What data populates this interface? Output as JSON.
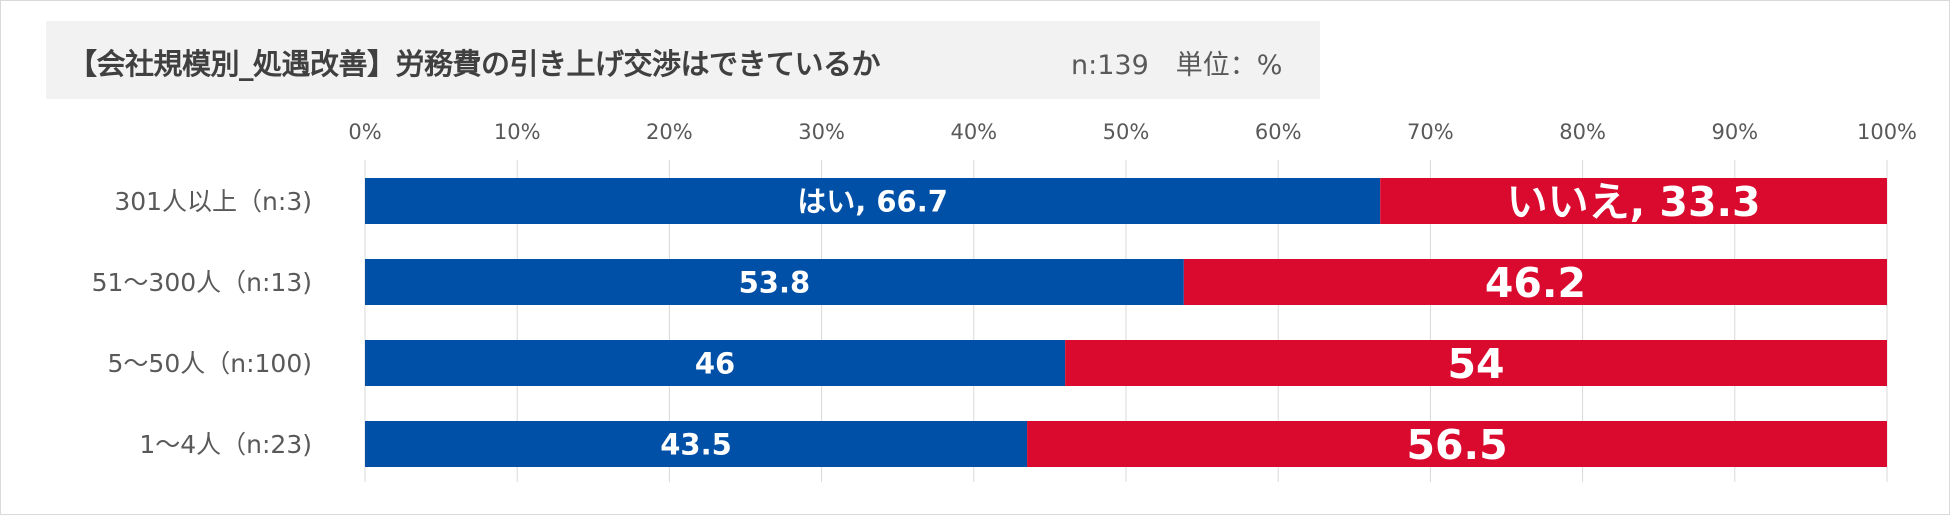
{
  "title": "【会社規模別_処遇改善】労務費の引き上げ交渉はできているか",
  "subtitle": "n:139　単位：%",
  "colors": {
    "yes": "#0050a8",
    "no": "#d90a2e",
    "grid": "#d9d9d9",
    "title_bg": "#f2f2f2"
  },
  "chart_data": {
    "type": "bar",
    "orientation": "horizontal",
    "stacked": true,
    "xlim": [
      0,
      100
    ],
    "x_ticks": [
      "0%",
      "10%",
      "20%",
      "30%",
      "40%",
      "50%",
      "60%",
      "70%",
      "80%",
      "90%",
      "100%"
    ],
    "categories": [
      "301人以上（n:3)",
      "51～300人（n:13)",
      "5～50人（n:100)",
      "1～4人（n:23)"
    ],
    "series": [
      {
        "name": "はい",
        "color": "#0050a8",
        "values": [
          66.7,
          53.8,
          46,
          43.5
        ],
        "labels": [
          "はい, 66.7",
          "53.8",
          "46",
          "43.5"
        ]
      },
      {
        "name": "いいえ",
        "color": "#d90a2e",
        "values": [
          33.3,
          46.2,
          54,
          56.5
        ],
        "labels": [
          "いいえ, 33.3",
          "46.2",
          "54",
          "56.5"
        ]
      }
    ],
    "grid": true
  }
}
